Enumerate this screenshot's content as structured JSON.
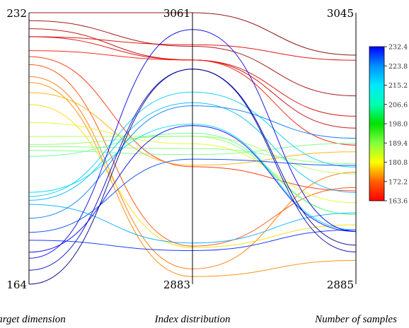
{
  "chart_data": {
    "type": "parallel-coordinates",
    "axes": [
      {
        "name": "Target dimension",
        "label": "Target dimension",
        "max_label": "232",
        "min_label": "164",
        "range": [
          164,
          232
        ]
      },
      {
        "name": "Index distribution",
        "label": "Index distribution",
        "max_label": "3061",
        "min_label": "2883",
        "range": [
          2883,
          3061
        ]
      },
      {
        "name": "Number of samples",
        "label": "Number of samples",
        "max_label": "3045",
        "min_label": "2885",
        "range": [
          2885,
          3045
        ]
      }
    ],
    "series": [
      {
        "values": [
          232.0,
          3061,
          3020
        ]
      },
      {
        "values": [
          230.0,
          3039,
          2996
        ]
      },
      {
        "values": [
          228.0,
          3030,
          2977
        ]
      },
      {
        "values": [
          226.0,
          3040,
          3017
        ]
      },
      {
        "values": [
          226.0,
          3030,
          2984
        ]
      },
      {
        "values": [
          222.5,
          3030,
          2967
        ]
      },
      {
        "values": [
          221.0,
          2960,
          2940
        ]
      },
      {
        "values": [
          219.0,
          2908,
          2942
        ]
      },
      {
        "values": [
          216.0,
          2893,
          2951
        ]
      },
      {
        "values": [
          214.5,
          2888,
          2899
        ]
      },
      {
        "values": [
          212.0,
          2961,
          2963
        ]
      },
      {
        "values": [
          209.0,
          2907,
          2920
        ]
      },
      {
        "values": [
          204.5,
          2975,
          2933
        ]
      },
      {
        "values": [
          201.0,
          2980,
          2950
        ]
      },
      {
        "values": [
          199.0,
          2980,
          2926
        ]
      },
      {
        "values": [
          198.5,
          2972,
          2956
        ]
      },
      {
        "values": [
          197.5,
          2968,
          2968
        ]
      },
      {
        "values": [
          196.0,
          2982,
          2926
        ]
      },
      {
        "values": [
          187.0,
          2988,
          2917
        ]
      },
      {
        "values": [
          186.0,
          3009,
          2954
        ]
      },
      {
        "values": [
          185.0,
          3002,
          2939
        ]
      },
      {
        "values": [
          184.0,
          2910,
          2927
        ]
      },
      {
        "values": [
          180.5,
          3000,
          2971
        ]
      },
      {
        "values": [
          177.0,
          2965,
          2955
        ]
      },
      {
        "values": [
          175.0,
          2905,
          2917
        ]
      },
      {
        "values": [
          172.0,
          2987,
          2916
        ]
      },
      {
        "values": [
          170.5,
          3050,
          2916
        ]
      },
      {
        "values": [
          167.5,
          3024,
          2904
        ]
      },
      {
        "values": [
          164.0,
          3024,
          2908
        ]
      }
    ],
    "colorbar": {
      "range": [
        163.6,
        232.4
      ],
      "tick_labels": [
        "232.4",
        "223.8",
        "215.2",
        "206.6",
        "198.0",
        "189.4",
        "180.8",
        "172.2",
        "163.6"
      ],
      "colormap": "jet",
      "color_by": "Target dimension"
    },
    "grid": false
  }
}
